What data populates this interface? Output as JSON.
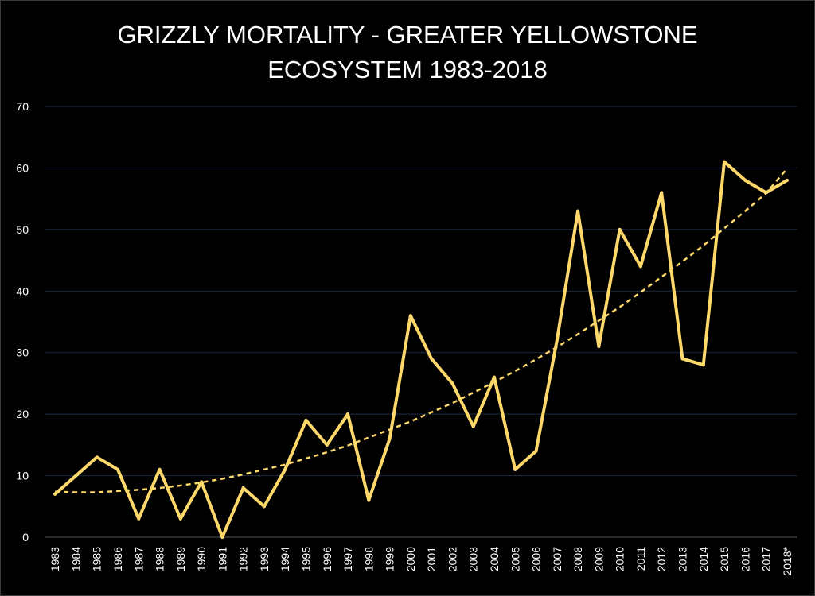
{
  "chart_data": {
    "type": "line",
    "title_line1": "GRIZZLY MORTALITY - GREATER YELLOWSTONE",
    "title_line2": "ECOSYSTEM 1983-2018",
    "xlabel": "",
    "ylabel": "",
    "categories": [
      "1983",
      "1984",
      "1985",
      "1986",
      "1987",
      "1988",
      "1989",
      "1990",
      "1991",
      "1992",
      "1993",
      "1994",
      "1995",
      "1996",
      "1997",
      "1998",
      "1999",
      "2000",
      "2001",
      "2002",
      "2003",
      "2004",
      "2005",
      "2006",
      "2007",
      "2008",
      "2009",
      "2010",
      "2011",
      "2012",
      "2013",
      "2014",
      "2015",
      "2016",
      "2017",
      "2018*"
    ],
    "series": [
      {
        "values": [
          7,
          10,
          13,
          11,
          3,
          11,
          3,
          9,
          0,
          8,
          5,
          11,
          19,
          15,
          20,
          6,
          16,
          36,
          29,
          25,
          18,
          26,
          11,
          14,
          32,
          53,
          31,
          50,
          44,
          56,
          29,
          28,
          61,
          58,
          56,
          58
        ],
        "color": "#ffd86a"
      }
    ],
    "trendline": {
      "type": "polynomial",
      "style": "dashed",
      "color": "#ffd86a",
      "values": [
        7.4,
        7.3,
        7.3,
        7.5,
        7.7,
        8.0,
        8.4,
        8.9,
        9.5,
        10.2,
        11.0,
        11.8,
        12.8,
        13.8,
        14.9,
        16.2,
        17.5,
        18.8,
        20.3,
        21.8,
        23.5,
        25.2,
        27.0,
        28.9,
        30.9,
        33.0,
        35.2,
        37.4,
        39.8,
        42.3,
        44.8,
        47.4,
        50.2,
        53.0,
        55.9,
        59.9
      ]
    },
    "ylim": [
      0,
      70
    ],
    "yticks": [
      0,
      10,
      20,
      30,
      40,
      50,
      60,
      70
    ],
    "grid": true,
    "legend": "none"
  }
}
